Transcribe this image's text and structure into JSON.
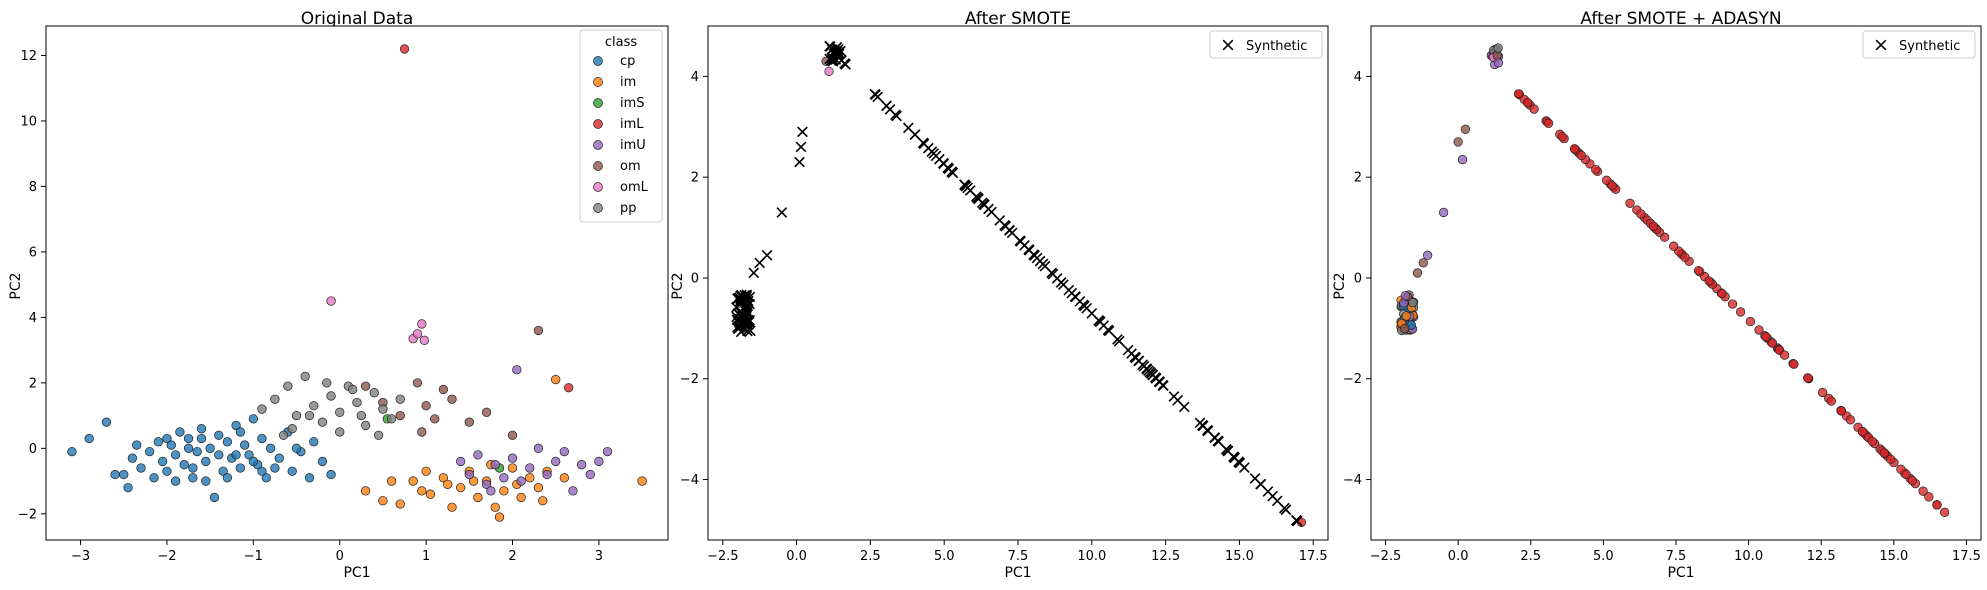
{
  "colors": {
    "cp": "#1f77b4",
    "im": "#ff7f0e",
    "imS": "#2ca02c",
    "imL": "#d62728",
    "imU": "#9467bd",
    "om": "#8c564b",
    "omL": "#e377c2",
    "pp": "#7f7f7f",
    "synthetic": "#000000"
  },
  "chart_data": [
    {
      "type": "scatter",
      "title": "Original Data",
      "xlabel": "PC1",
      "ylabel": "PC2",
      "xlim": [
        -3.4,
        3.8
      ],
      "ylim": [
        -2.8,
        12.9
      ],
      "xticks": [
        -3,
        -2,
        -1,
        0,
        1,
        2,
        3
      ],
      "yticks": [
        -2,
        0,
        2,
        4,
        6,
        8,
        10,
        12
      ],
      "legend": {
        "title": "class",
        "placement": "top-right",
        "entries": [
          "cp",
          "im",
          "imS",
          "imL",
          "imU",
          "om",
          "omL",
          "pp"
        ]
      },
      "series": [
        {
          "name": "cp",
          "color": "#1f77b4",
          "points": [
            [
              -3.1,
              -0.1
            ],
            [
              -2.7,
              0.8
            ],
            [
              -2.6,
              -0.8
            ],
            [
              -2.5,
              -0.8
            ],
            [
              -2.4,
              -0.3
            ],
            [
              -2.3,
              -0.6
            ],
            [
              -2.2,
              -0.1
            ],
            [
              -2.1,
              0.2
            ],
            [
              -2.05,
              -0.4
            ],
            [
              -2.0,
              -0.7
            ],
            [
              -1.95,
              0.1
            ],
            [
              -1.9,
              -0.2
            ],
            [
              -1.85,
              0.5
            ],
            [
              -1.8,
              -0.5
            ],
            [
              -1.75,
              0.3
            ],
            [
              -1.7,
              -0.9
            ],
            [
              -1.65,
              -0.1
            ],
            [
              -1.6,
              0.6
            ],
            [
              -1.55,
              -0.4
            ],
            [
              -1.5,
              0.0
            ],
            [
              -1.45,
              -1.5
            ],
            [
              -1.4,
              0.4
            ],
            [
              -1.35,
              -0.7
            ],
            [
              -1.3,
              0.2
            ],
            [
              -1.25,
              -0.3
            ],
            [
              -1.2,
              0.7
            ],
            [
              -1.15,
              -0.6
            ],
            [
              -1.1,
              0.1
            ],
            [
              -1.05,
              -0.2
            ],
            [
              -1.0,
              0.9
            ],
            [
              -0.95,
              -0.5
            ],
            [
              -0.9,
              0.3
            ],
            [
              -0.85,
              -0.9
            ],
            [
              -0.8,
              0.0
            ],
            [
              -0.7,
              -0.3
            ],
            [
              -0.6,
              0.5
            ],
            [
              -0.55,
              -0.7
            ],
            [
              -0.45,
              -0.1
            ],
            [
              -0.35,
              -0.9
            ],
            [
              -0.3,
              0.2
            ],
            [
              -0.2,
              -0.4
            ],
            [
              -0.1,
              -0.8
            ],
            [
              -2.9,
              0.3
            ],
            [
              -2.45,
              -1.2
            ],
            [
              -2.15,
              -0.9
            ],
            [
              -1.75,
              0.0
            ],
            [
              -1.55,
              -1.0
            ],
            [
              -1.3,
              -0.9
            ],
            [
              -1.15,
              0.5
            ],
            [
              -0.75,
              -0.6
            ],
            [
              -1.9,
              -1.0
            ],
            [
              -2.0,
              0.3
            ],
            [
              -1.6,
              0.3
            ],
            [
              -1.2,
              -0.2
            ],
            [
              -0.9,
              -0.7
            ],
            [
              -2.35,
              0.1
            ],
            [
              -1.7,
              -0.6
            ],
            [
              -1.4,
              -0.2
            ],
            [
              -1.0,
              -0.4
            ],
            [
              -0.5,
              0.0
            ]
          ]
        },
        {
          "name": "im",
          "color": "#ff7f0e",
          "points": [
            [
              0.3,
              -1.3
            ],
            [
              0.5,
              -1.6
            ],
            [
              0.7,
              -1.7
            ],
            [
              0.85,
              -1.0
            ],
            [
              0.95,
              -1.3
            ],
            [
              1.05,
              -1.4
            ],
            [
              1.2,
              -0.9
            ],
            [
              1.3,
              -1.8
            ],
            [
              1.4,
              -1.2
            ],
            [
              1.5,
              -0.7
            ],
            [
              1.6,
              -1.5
            ],
            [
              1.7,
              -1.0
            ],
            [
              1.8,
              -1.8
            ],
            [
              1.85,
              -2.1
            ],
            [
              1.9,
              -1.3
            ],
            [
              2.0,
              -0.6
            ],
            [
              2.1,
              -1.5
            ],
            [
              2.2,
              -0.9
            ],
            [
              2.3,
              -1.2
            ],
            [
              2.4,
              -0.7
            ],
            [
              2.5,
              2.1
            ],
            [
              2.6,
              -0.9
            ],
            [
              3.5,
              -1.0
            ],
            [
              1.0,
              -0.7
            ],
            [
              1.25,
              -1.1
            ],
            [
              1.55,
              -1.0
            ],
            [
              1.75,
              -0.5
            ],
            [
              2.05,
              -1.1
            ],
            [
              2.35,
              -1.6
            ],
            [
              0.6,
              -1.0
            ]
          ]
        },
        {
          "name": "imS",
          "color": "#2ca02c",
          "points": [
            [
              0.55,
              0.9
            ],
            [
              1.85,
              -0.6
            ]
          ]
        },
        {
          "name": "imL",
          "color": "#d62728",
          "points": [
            [
              0.75,
              12.2
            ],
            [
              2.65,
              1.85
            ]
          ]
        },
        {
          "name": "imU",
          "color": "#9467bd",
          "points": [
            [
              1.4,
              -0.4
            ],
            [
              1.5,
              -0.8
            ],
            [
              1.6,
              -0.2
            ],
            [
              1.7,
              -1.1
            ],
            [
              1.8,
              -0.5
            ],
            [
              1.9,
              -0.9
            ],
            [
              2.0,
              -0.3
            ],
            [
              2.1,
              -1.0
            ],
            [
              2.2,
              -0.6
            ],
            [
              2.3,
              0.0
            ],
            [
              2.4,
              -0.8
            ],
            [
              2.5,
              -0.4
            ],
            [
              2.6,
              -0.1
            ],
            [
              2.7,
              -1.3
            ],
            [
              2.8,
              -0.5
            ],
            [
              2.9,
              -0.8
            ],
            [
              3.0,
              -0.4
            ],
            [
              3.1,
              -0.1
            ],
            [
              2.05,
              2.4
            ],
            [
              1.75,
              -1.3
            ]
          ]
        },
        {
          "name": "om",
          "color": "#8c564b",
          "points": [
            [
              0.3,
              1.9
            ],
            [
              0.5,
              1.4
            ],
            [
              0.7,
              1.0
            ],
            [
              0.9,
              2.0
            ],
            [
              1.0,
              1.3
            ],
            [
              1.1,
              0.9
            ],
            [
              1.3,
              1.5
            ],
            [
              1.5,
              0.8
            ],
            [
              1.7,
              1.1
            ],
            [
              2.0,
              0.4
            ],
            [
              2.3,
              3.6
            ],
            [
              1.2,
              1.8
            ],
            [
              0.95,
              0.5
            ]
          ]
        },
        {
          "name": "omL",
          "color": "#e377c2",
          "points": [
            [
              -0.1,
              4.5
            ],
            [
              0.85,
              3.35
            ],
            [
              0.95,
              3.8
            ],
            [
              0.98,
              3.3
            ],
            [
              0.9,
              3.5
            ]
          ]
        },
        {
          "name": "pp",
          "color": "#7f7f7f",
          "points": [
            [
              -0.9,
              1.2
            ],
            [
              -0.75,
              1.5
            ],
            [
              -0.6,
              1.9
            ],
            [
              -0.5,
              1.0
            ],
            [
              -0.4,
              2.2
            ],
            [
              -0.3,
              1.3
            ],
            [
              -0.2,
              0.8
            ],
            [
              -0.1,
              1.6
            ],
            [
              0.0,
              1.1
            ],
            [
              0.1,
              1.9
            ],
            [
              0.2,
              1.4
            ],
            [
              0.3,
              0.7
            ],
            [
              0.4,
              1.7
            ],
            [
              0.5,
              1.2
            ],
            [
              0.6,
              0.9
            ],
            [
              0.7,
              1.5
            ],
            [
              -0.55,
              0.6
            ],
            [
              -0.35,
              1.0
            ],
            [
              0.0,
              0.5
            ],
            [
              0.25,
              1.0
            ],
            [
              -0.65,
              0.4
            ],
            [
              0.45,
              0.4
            ],
            [
              -0.15,
              2.0
            ],
            [
              0.15,
              1.8
            ]
          ]
        }
      ]
    },
    {
      "type": "scatter",
      "title": "After SMOTE",
      "xlabel": "PC1",
      "ylabel": "PC2",
      "xlim": [
        -3.0,
        18.0
      ],
      "ylim": [
        -5.2,
        5.0
      ],
      "xticks": [
        -2.5,
        0.0,
        2.5,
        5.0,
        7.5,
        10.0,
        12.5,
        15.0,
        17.5
      ],
      "xticklabels": [
        "−2.5",
        "0.0",
        "2.5",
        "5.0",
        "7.5",
        "10.0",
        "12.5",
        "15.0",
        "17.5"
      ],
      "yticks": [
        -4,
        -2,
        0,
        2,
        4
      ],
      "legend": {
        "placement": "top-right",
        "entries": [
          "Synthetic"
        ]
      },
      "synthetic_line": {
        "from": [
          1.3,
          4.45
        ],
        "to": [
          17.0,
          -4.85
        ],
        "count": 150
      },
      "synthetic_cluster_low": {
        "center": [
          -1.8,
          -0.7
        ],
        "count": 60
      },
      "synthetic_cluster_high": {
        "center": [
          1.3,
          4.45
        ],
        "count": 25
      },
      "synthetic_extra": [
        [
          -0.5,
          1.3
        ],
        [
          0.1,
          2.3
        ],
        [
          0.2,
          2.9
        ],
        [
          0.15,
          2.6
        ],
        [
          -1.0,
          0.45
        ],
        [
          -1.25,
          0.3
        ],
        [
          -1.45,
          0.1
        ]
      ],
      "original_points": [
        [
          -1.8,
          -0.95,
          "#ff7f0e"
        ],
        [
          -1.7,
          -0.6,
          "#1f77b4"
        ],
        [
          -1.9,
          -0.5,
          "#7f7f7f"
        ],
        [
          1.1,
          4.1,
          "#e377c2"
        ],
        [
          1.0,
          4.3,
          "#8c564b"
        ],
        [
          17.1,
          -4.85,
          "#d62728"
        ]
      ]
    },
    {
      "type": "scatter",
      "title": "After SMOTE + ADASYN",
      "xlabel": "PC1",
      "ylabel": "PC2",
      "xlim": [
        -3.0,
        18.0
      ],
      "ylim": [
        -5.2,
        5.0
      ],
      "xticks": [
        -2.5,
        0.0,
        2.5,
        5.0,
        7.5,
        10.0,
        12.5,
        15.0,
        17.5
      ],
      "xticklabels": [
        "−2.5",
        "0.0",
        "2.5",
        "5.0",
        "7.5",
        "10.0",
        "12.5",
        "15.0",
        "17.5"
      ],
      "yticks": [
        -4,
        -2,
        0,
        2,
        4
      ],
      "legend": {
        "placement": "top-right",
        "entries": [
          "Synthetic"
        ]
      },
      "imL_line": {
        "from": [
          2.0,
          3.7
        ],
        "to": [
          17.1,
          -4.85
        ],
        "count": 110,
        "color": "#d62728"
      },
      "cluster_low": {
        "center": [
          -1.75,
          -0.7
        ],
        "count": 45,
        "colors": [
          "#1f77b4",
          "#ff7f0e",
          "#7f7f7f",
          "#9467bd",
          "#8c564b"
        ]
      },
      "cluster_high": {
        "center": [
          1.25,
          4.4
        ],
        "count": 16,
        "colors": [
          "#e377c2",
          "#8c564b",
          "#7f7f7f",
          "#9467bd"
        ]
      },
      "points": [
        [
          -0.5,
          1.3,
          "#9467bd"
        ],
        [
          0.15,
          2.35,
          "#9467bd"
        ],
        [
          0.0,
          2.7,
          "#8c564b"
        ],
        [
          0.25,
          2.95,
          "#8c564b"
        ],
        [
          -1.05,
          0.45,
          "#9467bd"
        ],
        [
          -1.2,
          0.3,
          "#8c564b"
        ],
        [
          -1.4,
          0.1,
          "#8c564b"
        ]
      ]
    }
  ]
}
